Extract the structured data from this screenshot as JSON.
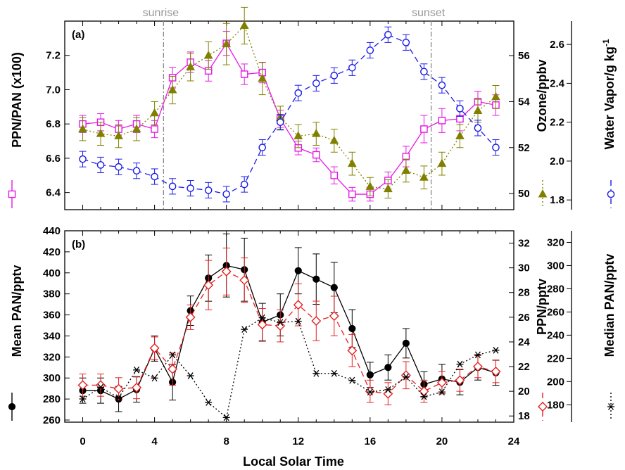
{
  "figure": {
    "xlabel": "Local Solar Time",
    "xticks": [
      0,
      4,
      8,
      12,
      16,
      20,
      24
    ],
    "xlim": [
      -1,
      24
    ]
  },
  "chart_data": [
    {
      "type": "line",
      "panel_label": "(a)",
      "annotations": [
        {
          "label": "sunrise",
          "x": 4.5
        },
        {
          "label": "sunset",
          "x": 19.4
        }
      ],
      "axes": {
        "left": {
          "label": "PPN/PAN (x100)",
          "ylim": [
            6.3,
            7.4
          ],
          "ticks": [
            6.4,
            6.6,
            6.8,
            7.0,
            7.2
          ],
          "tick_labels": [
            "6.4",
            "6.6",
            "6.8",
            "7.0",
            "7.2"
          ]
        },
        "right1": {
          "label": "Ozone/ppbv",
          "ylim": [
            49.3,
            57.5
          ],
          "ticks": [
            50,
            52,
            54,
            56
          ],
          "tick_labels": [
            "50",
            "52",
            "54",
            "56"
          ]
        },
        "right2": {
          "label": "Water Vapor/g kg",
          "label_sup": "-1",
          "ylim": [
            1.75,
            2.72
          ],
          "ticks": [
            1.8,
            2.0,
            2.2,
            2.4,
            2.6
          ],
          "tick_labels": [
            "1.8",
            "2.0",
            "2.2",
            "2.4",
            "2.6"
          ]
        }
      },
      "series": [
        {
          "name": "PPN/PAN (x100)",
          "axis": "left",
          "color": "#e619e6",
          "marker": "open-square",
          "dash": "solid",
          "x": [
            0,
            1,
            2,
            3,
            4,
            5,
            6,
            7,
            8,
            9,
            10,
            11,
            12,
            13,
            14,
            15,
            16,
            17,
            18,
            19,
            20,
            21,
            22,
            23
          ],
          "values": [
            6.8,
            6.81,
            6.77,
            6.8,
            6.77,
            7.07,
            7.16,
            7.11,
            7.27,
            7.09,
            7.1,
            6.83,
            6.66,
            6.62,
            6.5,
            6.39,
            6.39,
            6.47,
            6.61,
            6.77,
            6.82,
            6.83,
            6.93,
            6.91
          ],
          "errors": [
            0.05,
            0.05,
            0.05,
            0.05,
            0.05,
            0.06,
            0.06,
            0.06,
            0.07,
            0.06,
            0.06,
            0.05,
            0.04,
            0.04,
            0.05,
            0.04,
            0.04,
            0.05,
            0.06,
            0.08,
            0.07,
            0.07,
            0.06,
            0.06
          ]
        },
        {
          "name": "Ozone/ppbv",
          "axis": "right1",
          "color": "#808000",
          "marker": "filled-triangle",
          "dash": "dotted",
          "x": [
            0,
            1,
            2,
            3,
            4,
            5,
            6,
            7,
            8,
            9,
            10,
            11,
            12,
            13,
            14,
            15,
            16,
            17,
            18,
            19,
            20,
            21,
            22,
            23
          ],
          "values": [
            52.8,
            52.6,
            52.5,
            52.8,
            53.5,
            54.5,
            55.5,
            56.0,
            56.5,
            57.3,
            55.0,
            53.3,
            52.5,
            52.6,
            52.3,
            51.3,
            50.3,
            50.2,
            51.0,
            50.7,
            51.3,
            52.5,
            53.6,
            54.2
          ],
          "errors": [
            0.5,
            0.5,
            0.5,
            0.5,
            0.5,
            0.6,
            0.6,
            0.6,
            0.9,
            0.8,
            0.7,
            0.5,
            0.5,
            0.5,
            0.5,
            0.5,
            0.4,
            0.4,
            0.5,
            0.5,
            0.5,
            0.5,
            0.5,
            0.5
          ]
        },
        {
          "name": "Water Vapor/g kg-1",
          "axis": "right2",
          "color": "#1a1ae6",
          "marker": "open-circle",
          "dash": "dashed",
          "x": [
            0,
            1,
            2,
            3,
            4,
            5,
            6,
            7,
            8,
            9,
            10,
            11,
            12,
            13,
            14,
            15,
            16,
            17,
            18,
            19,
            20,
            21,
            22,
            23
          ],
          "values": [
            2.01,
            1.98,
            1.97,
            1.95,
            1.92,
            1.87,
            1.86,
            1.85,
            1.83,
            1.88,
            2.07,
            2.2,
            2.35,
            2.4,
            2.44,
            2.48,
            2.57,
            2.65,
            2.61,
            2.46,
            2.39,
            2.27,
            2.17,
            2.07
          ],
          "errors": [
            0.04,
            0.04,
            0.04,
            0.04,
            0.04,
            0.04,
            0.04,
            0.04,
            0.04,
            0.04,
            0.04,
            0.04,
            0.04,
            0.04,
            0.04,
            0.04,
            0.04,
            0.04,
            0.04,
            0.04,
            0.04,
            0.04,
            0.04,
            0.04
          ]
        }
      ]
    },
    {
      "type": "line",
      "panel_label": "(b)",
      "axes": {
        "left": {
          "label": "Mean PAN/pptv",
          "ylim": [
            258,
            440
          ],
          "ticks": [
            260,
            280,
            300,
            320,
            340,
            360,
            380,
            400,
            420,
            440
          ],
          "tick_labels": [
            "260",
            "280",
            "300",
            "320",
            "340",
            "360",
            "380",
            "400",
            "420",
            "440"
          ]
        },
        "right1": {
          "label": "PPN/pptv",
          "ylim": [
            17.5,
            33
          ],
          "ticks": [
            18,
            20,
            22,
            24,
            26,
            28,
            30,
            32
          ],
          "tick_labels": [
            "18",
            "20",
            "22",
            "24",
            "26",
            "28",
            "30",
            "32"
          ]
        },
        "right2": {
          "label": "Median PAN/pptv",
          "ylim": [
            165,
            330
          ],
          "ticks": [
            180,
            200,
            220,
            240,
            260,
            280,
            300,
            320
          ],
          "tick_labels": [
            "180",
            "200",
            "220",
            "240",
            "260",
            "280",
            "300",
            "320"
          ]
        }
      },
      "series": [
        {
          "name": "Mean PAN/pptv",
          "axis": "left",
          "color": "#000000",
          "marker": "filled-circle",
          "dash": "solid",
          "x": [
            0,
            1,
            2,
            3,
            4,
            5,
            6,
            7,
            8,
            9,
            10,
            11,
            12,
            13,
            14,
            15,
            16,
            17,
            18,
            19,
            20,
            21,
            22,
            23
          ],
          "values": [
            288,
            288,
            280,
            289,
            328,
            296,
            364,
            395,
            407,
            403,
            353,
            360,
            402,
            394,
            386,
            347,
            303,
            310,
            333,
            294,
            299,
            296,
            310,
            305
          ],
          "errors": [
            12,
            12,
            12,
            12,
            12,
            17,
            14,
            22,
            30,
            30,
            18,
            20,
            22,
            24,
            24,
            18,
            12,
            12,
            14,
            12,
            14,
            12,
            12,
            12
          ]
        },
        {
          "name": "PPN/pptv",
          "axis": "right1",
          "color": "#e62020",
          "marker": "open-diamond",
          "dash": "dashed",
          "x": [
            0,
            1,
            2,
            3,
            4,
            5,
            6,
            7,
            8,
            9,
            10,
            11,
            12,
            13,
            14,
            15,
            16,
            17,
            18,
            19,
            20,
            21,
            22,
            23
          ],
          "values": [
            20.5,
            20.5,
            20.2,
            20.3,
            23.5,
            21.8,
            26.0,
            28.6,
            29.7,
            29.0,
            25.4,
            25.3,
            27.0,
            25.7,
            26.1,
            23.3,
            20.0,
            19.8,
            21.3,
            20.0,
            20.7,
            20.9,
            22.0,
            21.6
          ],
          "errors": [
            0.9,
            0.9,
            0.9,
            0.9,
            0.9,
            1.3,
            1.0,
            2.0,
            1.9,
            1.8,
            1.3,
            1.3,
            1.7,
            1.6,
            1.6,
            1.3,
            0.9,
            0.9,
            1.1,
            0.9,
            0.9,
            0.9,
            0.9,
            0.9
          ]
        },
        {
          "name": "Median PAN/pptv",
          "axis": "right2",
          "color": "#000000",
          "marker": "asterisk",
          "dash": "dotted",
          "x": [
            0,
            1,
            2,
            3,
            4,
            5,
            6,
            7,
            8,
            9,
            10,
            11,
            12,
            13,
            14,
            15,
            16,
            17,
            18,
            19,
            20,
            21,
            22,
            23
          ],
          "values": [
            185,
            195,
            186,
            210,
            203,
            223,
            205,
            182,
            169,
            245,
            255,
            251,
            252,
            207,
            207,
            201,
            191,
            193,
            204,
            187,
            191,
            215,
            223,
            227
          ],
          "errors": []
        }
      ]
    }
  ]
}
